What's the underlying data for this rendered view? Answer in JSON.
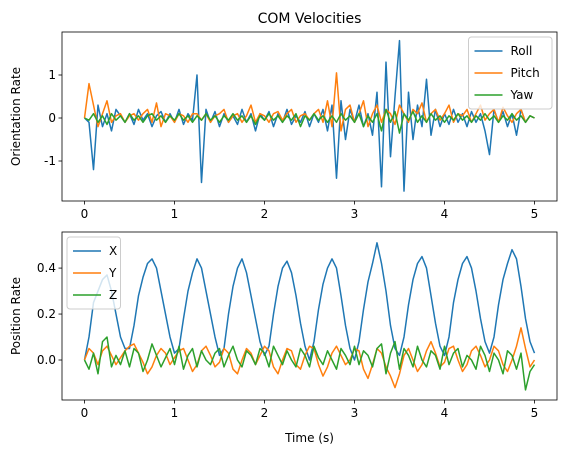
{
  "chart_data": [
    {
      "type": "line",
      "title": "COM Velocities",
      "ylabel": "Orientation Rate",
      "x": [
        0,
        0.05,
        0.1,
        0.15,
        0.2,
        0.25,
        0.3,
        0.35,
        0.4,
        0.45,
        0.5,
        0.55,
        0.6,
        0.65,
        0.7,
        0.75,
        0.8,
        0.85,
        0.9,
        0.95,
        1,
        1.05,
        1.1,
        1.15,
        1.2,
        1.25,
        1.3,
        1.35,
        1.4,
        1.45,
        1.5,
        1.55,
        1.6,
        1.65,
        1.7,
        1.75,
        1.8,
        1.85,
        1.9,
        1.95,
        2,
        2.05,
        2.1,
        2.15,
        2.2,
        2.25,
        2.3,
        2.35,
        2.4,
        2.45,
        2.5,
        2.55,
        2.6,
        2.65,
        2.7,
        2.75,
        2.8,
        2.85,
        2.9,
        2.95,
        3,
        3.05,
        3.1,
        3.15,
        3.2,
        3.25,
        3.3,
        3.35,
        3.4,
        3.45,
        3.5,
        3.55,
        3.6,
        3.65,
        3.7,
        3.75,
        3.8,
        3.85,
        3.9,
        3.95,
        4,
        4.05,
        4.1,
        4.15,
        4.2,
        4.25,
        4.3,
        4.35,
        4.4,
        4.45,
        4.5,
        4.55,
        4.6,
        4.65,
        4.7,
        4.75,
        4.8,
        4.85,
        4.9,
        4.95,
        5
      ],
      "series": [
        {
          "name": "Roll",
          "color": "#1f77b4",
          "values": [
            0,
            -0.1,
            -1.2,
            0.3,
            -0.2,
            0.1,
            -0.3,
            0.2,
            0.05,
            -0.1,
            0.1,
            -0.15,
            0.2,
            -0.05,
            0.1,
            -0.2,
            0.05,
            0.15,
            -0.1,
            0.1,
            -0.1,
            0.2,
            -0.15,
            0.1,
            -0.05,
            1.0,
            -1.5,
            0.2,
            -0.1,
            0.15,
            -0.2,
            0.1,
            -0.1,
            0.05,
            -0.15,
            0.2,
            -0.1,
            0.1,
            -0.3,
            0.1,
            -0.05,
            0.15,
            -0.2,
            0.1,
            -0.1,
            0.2,
            -0.15,
            0.05,
            -0.1,
            0.15,
            -0.2,
            0.1,
            -0.1,
            0.2,
            -0.3,
            0.3,
            -1.4,
            0.4,
            -0.5,
            0.2,
            -0.1,
            0.3,
            -0.2,
            0.1,
            -0.4,
            0.6,
            -1.6,
            1.3,
            -0.9,
            0.5,
            1.8,
            -1.7,
            0.6,
            -0.5,
            0.3,
            -0.2,
            0.9,
            -0.4,
            0.2,
            -0.2,
            0.1,
            -0.15,
            0.2,
            -0.1,
            0.1,
            -0.2,
            0.15,
            -0.1,
            0.1,
            -0.3,
            -0.85,
            0.2,
            -0.1,
            0.15,
            -0.2,
            0.1,
            -0.4,
            0.2,
            -0.1,
            0.05,
            0
          ]
        },
        {
          "name": "Pitch",
          "color": "#ff7f0e",
          "values": [
            0,
            0.8,
            0.3,
            -0.2,
            0.1,
            0.4,
            -0.1,
            0.05,
            0.1,
            -0.1,
            0.05,
            0.1,
            -0.05,
            0.1,
            0.2,
            -0.1,
            0.35,
            -0.2,
            0.1,
            0.05,
            -0.1,
            0.1,
            0.05,
            -0.1,
            0.1,
            0.1,
            -0.05,
            0.1,
            -0.1,
            0.05,
            0.1,
            0.2,
            -0.1,
            0.05,
            0.1,
            -0.1,
            0.05,
            0.3,
            -0.1,
            0.1,
            0.05,
            -0.1,
            0.1,
            0.15,
            -0.05,
            0.1,
            0.2,
            -0.1,
            0.05,
            0.1,
            -0.05,
            0.1,
            0.2,
            -0.1,
            0.4,
            -0.2,
            1.05,
            -0.3,
            0.2,
            0.3,
            -0.1,
            0.1,
            0.4,
            -0.2,
            0.1,
            0.3,
            -0.1,
            0.2,
            0.1,
            -0.15,
            0.3,
            0.1,
            -0.1,
            0.2,
            0.1,
            0.35,
            -0.1,
            0.1,
            0.2,
            -0.05,
            0.1,
            0.3,
            -0.1,
            0.1,
            0.05,
            0.2,
            -0.1,
            0.1,
            0.3,
            -0.05,
            0.1,
            0.2,
            -0.1,
            0.25,
            0.05,
            -0.1,
            0.1,
            0.2,
            -0.1,
            0.05,
            0
          ]
        },
        {
          "name": "Yaw",
          "color": "#2ca02c",
          "values": [
            0,
            -0.05,
            0.1,
            -0.1,
            0.05,
            -0.15,
            0.1,
            -0.05,
            0.05,
            -0.1,
            0.1,
            -0.05,
            0.05,
            -0.1,
            0.05,
            0.1,
            -0.05,
            0.05,
            -0.1,
            0.05,
            -0.05,
            0.1,
            -0.05,
            0.05,
            -0.1,
            0.05,
            -0.05,
            0.1,
            -0.05,
            0.05,
            -0.1,
            0.05,
            -0.05,
            0.1,
            -0.05,
            0.05,
            -0.1,
            0.05,
            -0.15,
            0.05,
            -0.05,
            0.1,
            -0.05,
            0.05,
            -0.1,
            0.05,
            -0.05,
            0.1,
            -0.2,
            0.05,
            -0.05,
            0.1,
            -0.05,
            0.05,
            -0.1,
            0.05,
            -0.1,
            0.1,
            -0.05,
            0.05,
            -0.1,
            0.1,
            -0.2,
            0.05,
            -0.1,
            0.1,
            -0.3,
            0.2,
            -0.1,
            0.15,
            -0.35,
            0.1,
            -0.05,
            0.15,
            -0.1,
            0.05,
            -0.1,
            0.1,
            -0.05,
            0.05,
            -0.1,
            0.05,
            -0.05,
            0.1,
            -0.05,
            0.05,
            -0.1,
            0.05,
            -0.05,
            0.1,
            -0.05,
            0.05,
            -0.1,
            0.05,
            -0.05,
            0.1,
            -0.05,
            0.05,
            -0.1,
            0.05,
            0
          ]
        }
      ],
      "xlim": [
        -0.25,
        5.25
      ],
      "xticks": [
        0,
        1,
        2,
        3,
        4,
        5
      ],
      "ylim": [
        -1.93,
        2.0
      ],
      "yticks": [
        -1,
        0,
        1
      ],
      "legend": "upper right"
    },
    {
      "type": "line",
      "xlabel": "Time (s)",
      "ylabel": "Position Rate",
      "x": [
        0,
        0.05,
        0.1,
        0.15,
        0.2,
        0.25,
        0.3,
        0.35,
        0.4,
        0.45,
        0.5,
        0.55,
        0.6,
        0.65,
        0.7,
        0.75,
        0.8,
        0.85,
        0.9,
        0.95,
        1,
        1.05,
        1.1,
        1.15,
        1.2,
        1.25,
        1.3,
        1.35,
        1.4,
        1.45,
        1.5,
        1.55,
        1.6,
        1.65,
        1.7,
        1.75,
        1.8,
        1.85,
        1.9,
        1.95,
        2,
        2.05,
        2.1,
        2.15,
        2.2,
        2.25,
        2.3,
        2.35,
        2.4,
        2.45,
        2.5,
        2.55,
        2.6,
        2.65,
        2.7,
        2.75,
        2.8,
        2.85,
        2.9,
        2.95,
        3,
        3.05,
        3.1,
        3.15,
        3.2,
        3.25,
        3.3,
        3.35,
        3.4,
        3.45,
        3.5,
        3.55,
        3.6,
        3.65,
        3.7,
        3.75,
        3.8,
        3.85,
        3.9,
        3.95,
        4,
        4.05,
        4.1,
        4.15,
        4.2,
        4.25,
        4.3,
        4.35,
        4.4,
        4.45,
        4.5,
        4.55,
        4.6,
        4.65,
        4.7,
        4.75,
        4.8,
        4.85,
        4.9,
        4.95,
        5
      ],
      "series": [
        {
          "name": "X",
          "color": "#1f77b4",
          "values": [
            0,
            0.1,
            0.25,
            0.3,
            0.35,
            0.37,
            0.3,
            0.2,
            0.1,
            0.05,
            0.05,
            0.15,
            0.28,
            0.36,
            0.42,
            0.44,
            0.4,
            0.3,
            0.2,
            0.1,
            0.03,
            0.05,
            0.18,
            0.3,
            0.38,
            0.44,
            0.4,
            0.3,
            0.2,
            0.1,
            0.02,
            0.05,
            0.2,
            0.32,
            0.4,
            0.44,
            0.38,
            0.28,
            0.18,
            0.08,
            0.02,
            0.06,
            0.2,
            0.32,
            0.4,
            0.43,
            0.38,
            0.28,
            0.16,
            0.06,
            0,
            0.08,
            0.22,
            0.33,
            0.4,
            0.44,
            0.4,
            0.28,
            0.15,
            0.05,
            0,
            0.08,
            0.22,
            0.34,
            0.42,
            0.51,
            0.42,
            0.3,
            0.15,
            0.05,
            0.02,
            0.1,
            0.24,
            0.35,
            0.42,
            0.45,
            0.4,
            0.28,
            0.16,
            0.06,
            0.02,
            0.1,
            0.25,
            0.35,
            0.42,
            0.45,
            0.4,
            0.3,
            0.18,
            0.08,
            0.03,
            0.1,
            0.24,
            0.35,
            0.42,
            0.48,
            0.44,
            0.32,
            0.18,
            0.08,
            0.03
          ]
        },
        {
          "name": "Y",
          "color": "#ff7f0e",
          "values": [
            0,
            0.05,
            0.03,
            -0.02,
            0.04,
            0.06,
            0.02,
            -0.02,
            0.01,
            0.04,
            0.06,
            0.07,
            0.03,
            -0.01,
            -0.06,
            -0.03,
            0.02,
            0.05,
            0.03,
            -0.02,
            0.01,
            0.04,
            0.05,
            0.0,
            -0.05,
            -0.02,
            0.04,
            0.06,
            0.02,
            -0.03,
            -0.01,
            0.05,
            0.03,
            -0.04,
            -0.06,
            0.0,
            0.05,
            0.03,
            -0.02,
            0.02,
            0.06,
            0.04,
            -0.03,
            -0.06,
            0.0,
            0.05,
            0.04,
            -0.02,
            -0.04,
            0.02,
            0.06,
            0.05,
            -0.02,
            -0.07,
            -0.03,
            0.03,
            0.06,
            0.02,
            -0.02,
            0.0,
            0.05,
            0.04,
            -0.04,
            -0.08,
            -0.02,
            0.05,
            0.03,
            -0.03,
            -0.07,
            -0.12,
            -0.06,
            0.02,
            0.05,
            0.0,
            -0.05,
            -0.02,
            0.04,
            0.08,
            0.03,
            -0.03,
            -0.01,
            0.05,
            0.06,
            0.0,
            -0.05,
            -0.02,
            0.04,
            0.06,
            0.02,
            -0.03,
            0.0,
            0.06,
            0.04,
            -0.02,
            -0.05,
            0.0,
            0.06,
            0.14,
            0.05,
            -0.03,
            0.0
          ]
        },
        {
          "name": "Z",
          "color": "#2ca02c",
          "values": [
            0,
            -0.04,
            0.03,
            -0.06,
            0.08,
            0.1,
            -0.03,
            0.02,
            -0.02,
            0.04,
            -0.03,
            0.05,
            0.03,
            -0.05,
            0.0,
            0.07,
            0.02,
            -0.03,
            0.01,
            0.05,
            -0.02,
            0.06,
            -0.04,
            0.02,
            0.05,
            -0.03,
            0.04,
            0.0,
            -0.02,
            0.03,
            0.05,
            -0.03,
            0.02,
            0.06,
            0.0,
            -0.03,
            0.04,
            0.02,
            -0.02,
            0.05,
            0.03,
            -0.03,
            0.06,
            0.02,
            -0.02,
            0.04,
            0.0,
            -0.03,
            0.05,
            0.02,
            -0.03,
            0.06,
            0.01,
            -0.02,
            0.04,
            0.0,
            -0.04,
            0.05,
            0.02,
            -0.02,
            0.06,
            -0.02,
            0.04,
            0.02,
            -0.03,
            0.05,
            0.07,
            -0.06,
            0.03,
            0.08,
            -0.04,
            0.05,
            0.02,
            -0.03,
            0.06,
            0.0,
            -0.03,
            0.04,
            0.02,
            -0.04,
            0.06,
            -0.02,
            0.03,
            0.05,
            -0.03,
            0.02,
            0.0,
            -0.04,
            0.06,
            0.02,
            -0.05,
            0.03,
            0.0,
            -0.06,
            0.04,
            0.02,
            -0.04,
            0.03,
            -0.13,
            -0.05,
            -0.02
          ]
        }
      ],
      "xlim": [
        -0.25,
        5.25
      ],
      "xticks": [
        0,
        1,
        2,
        3,
        4,
        5
      ],
      "ylim": [
        -0.174,
        0.557
      ],
      "yticks": [
        {
          "value": 0,
          "label": "0.0"
        },
        0.2,
        0.4
      ],
      "legend": "upper left"
    }
  ]
}
